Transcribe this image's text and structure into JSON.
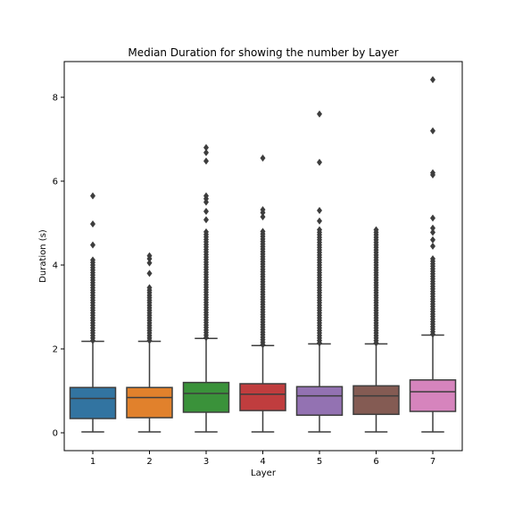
{
  "chart_data": {
    "type": "box",
    "title": "Median Duration for showing the number by Layer",
    "xlabel": "Layer",
    "ylabel": "Duration (s)",
    "ylim": [
      -0.4,
      8.8
    ],
    "yticks": [
      0,
      2,
      4,
      6,
      8
    ],
    "grid": false,
    "legend": "none",
    "categories": [
      "1",
      "2",
      "3",
      "4",
      "5",
      "6",
      "7"
    ],
    "series": [
      {
        "category": "1",
        "color": "#3274a1",
        "min": 0.02,
        "q1": 0.34,
        "median": 0.82,
        "q3": 1.08,
        "whisker_high": 2.18,
        "outlier_band": [
          2.2,
          4.15
        ],
        "outliers": [
          4.48,
          4.98,
          5.65
        ]
      },
      {
        "category": "2",
        "color": "#e1812c",
        "min": 0.02,
        "q1": 0.36,
        "median": 0.84,
        "q3": 1.08,
        "whisker_high": 2.18,
        "outlier_band": [
          2.2,
          3.5
        ],
        "outliers": [
          3.8,
          4.05,
          4.15,
          4.22
        ]
      },
      {
        "category": "3",
        "color": "#3a923a",
        "min": 0.02,
        "q1": 0.49,
        "median": 0.94,
        "q3": 1.2,
        "whisker_high": 2.25,
        "outlier_band": [
          2.27,
          4.8
        ],
        "outliers": [
          5.08,
          5.28,
          5.5,
          5.58,
          5.65,
          6.48,
          6.68,
          6.8
        ]
      },
      {
        "category": "4",
        "color": "#c03d3e",
        "min": 0.02,
        "q1": 0.53,
        "median": 0.92,
        "q3": 1.17,
        "whisker_high": 2.08,
        "outlier_band": [
          2.1,
          4.8
        ],
        "outliers": [
          5.15,
          5.25,
          5.32,
          6.55
        ]
      },
      {
        "category": "5",
        "color": "#9372b2",
        "min": 0.02,
        "q1": 0.42,
        "median": 0.88,
        "q3": 1.1,
        "whisker_high": 2.12,
        "outlier_band": [
          2.14,
          4.85
        ],
        "outliers": [
          5.05,
          5.3,
          6.45,
          7.6
        ]
      },
      {
        "category": "6",
        "color": "#845b53",
        "min": 0.02,
        "q1": 0.44,
        "median": 0.88,
        "q3": 1.12,
        "whisker_high": 2.12,
        "outlier_band": [
          2.14,
          4.85
        ],
        "outliers": []
      },
      {
        "category": "7",
        "color": "#d684bd",
        "min": 0.02,
        "q1": 0.51,
        "median": 0.98,
        "q3": 1.26,
        "whisker_high": 2.33,
        "outlier_band": [
          2.35,
          4.2
        ],
        "outliers": [
          4.45,
          4.6,
          4.78,
          4.88,
          5.12,
          6.15,
          6.2,
          7.2,
          8.42
        ]
      }
    ]
  }
}
